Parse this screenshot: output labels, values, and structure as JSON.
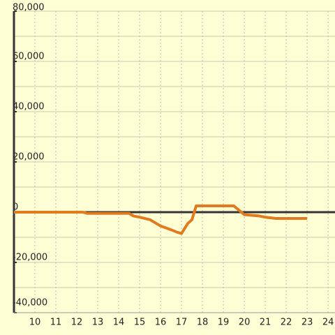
{
  "chart_data": {
    "type": "line",
    "x": [
      9,
      12.3,
      12.5,
      14.5,
      14.7,
      15.0,
      15.5,
      16.0,
      16.5,
      16.8,
      17.0,
      17.3,
      17.5,
      17.7,
      19.5,
      20.0,
      20.7,
      21.0,
      21.5,
      23.0
    ],
    "series": [
      {
        "color": "#e07b20",
        "values": [
          0,
          0,
          -500,
          -500,
          -1500,
          -2000,
          -3000,
          -5500,
          -7000,
          -8000,
          -8500,
          -4500,
          -3000,
          2500,
          2500,
          -1000,
          -1500,
          -2000,
          -2500,
          -2500
        ]
      }
    ],
    "xlim": [
      9,
      24.33
    ],
    "xticks": [
      10,
      11,
      12,
      13,
      14,
      15,
      16,
      17,
      18,
      19,
      20,
      21,
      22,
      23,
      24
    ],
    "ylim": [
      -40000,
      80000
    ],
    "yticks": [
      {
        "value": -40000,
        "label": "-40,000"
      },
      {
        "value": -20000,
        "label": "-20,000"
      },
      0,
      {
        "value": 20000,
        "label": "20,000"
      },
      {
        "value": 40000,
        "label": "40,000"
      },
      {
        "value": 60000,
        "label": "60,000"
      },
      {
        "value": 80000,
        "label": "80,000"
      }
    ],
    "minor_yticks": [
      -30000,
      -10000,
      10000,
      30000,
      50000,
      70000
    ],
    "grid": true
  }
}
